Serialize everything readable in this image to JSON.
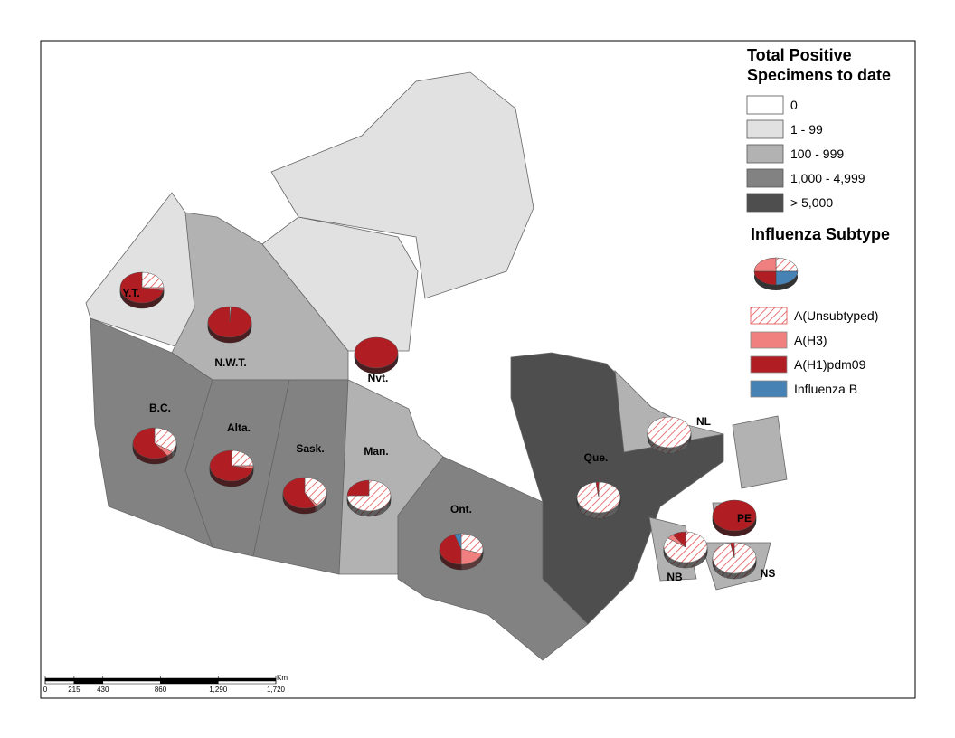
{
  "legend": {
    "title": "Total Positive Specimens to date",
    "classes": [
      {
        "label": "0",
        "color": "#ffffff"
      },
      {
        "label": "1 - 99",
        "color": "#e1e1e1"
      },
      {
        "label": "100 - 999",
        "color": "#b2b2b2"
      },
      {
        "label": "1,000 - 4,999",
        "color": "#828282"
      },
      {
        "label": "> 5,000",
        "color": "#4e4e4e"
      }
    ]
  },
  "subtype_legend": {
    "title": "Influenza Subtype",
    "items": [
      {
        "label": "A(Unsubtyped)",
        "color": "#e04848",
        "hatched": true
      },
      {
        "label": "A(H3)",
        "color": "#f08080",
        "hatched": false
      },
      {
        "label": "A(H1)pdm09",
        "color": "#b01e24",
        "hatched": false
      },
      {
        "label": "Influenza B",
        "color": "#4682b4",
        "hatched": false
      }
    ]
  },
  "provinces": [
    {
      "label": "Y.T.",
      "class": 1,
      "shares": [
        25,
        3,
        72,
        0
      ]
    },
    {
      "label": "N.W.T.",
      "class": 2,
      "shares": [
        1,
        0,
        99,
        0
      ]
    },
    {
      "label": "Nvt.",
      "class": 1,
      "shares": [
        0,
        0,
        100,
        0
      ]
    },
    {
      "label": "B.C.",
      "class": 3,
      "shares": [
        35,
        5,
        60,
        0
      ]
    },
    {
      "label": "Alta.",
      "class": 3,
      "shares": [
        25,
        3,
        72,
        0
      ]
    },
    {
      "label": "Sask.",
      "class": 3,
      "shares": [
        40,
        2,
        58,
        0
      ]
    },
    {
      "label": "Man.",
      "class": 2,
      "shares": [
        75,
        0,
        25,
        0
      ]
    },
    {
      "label": "Ont.",
      "class": 3,
      "shares": [
        30,
        20,
        45,
        5
      ]
    },
    {
      "label": "Que.",
      "class": 4,
      "shares": [
        98,
        0,
        2,
        0
      ]
    },
    {
      "label": "NL",
      "class": 2,
      "shares": [
        100,
        0,
        0,
        0
      ]
    },
    {
      "label": "PE",
      "class": 2,
      "shares": [
        0,
        0,
        100,
        0
      ]
    },
    {
      "label": "NB",
      "class": 2,
      "shares": [
        85,
        5,
        10,
        0
      ]
    },
    {
      "label": "NS",
      "class": 2,
      "shares": [
        97,
        0,
        3,
        0
      ]
    }
  ],
  "scale": {
    "unit": "Km",
    "ticks": [
      0,
      215,
      430,
      860,
      {
        "value": 1290,
        "label": "1,290"
      },
      {
        "value": 1720,
        "label": "1,720"
      }
    ]
  }
}
